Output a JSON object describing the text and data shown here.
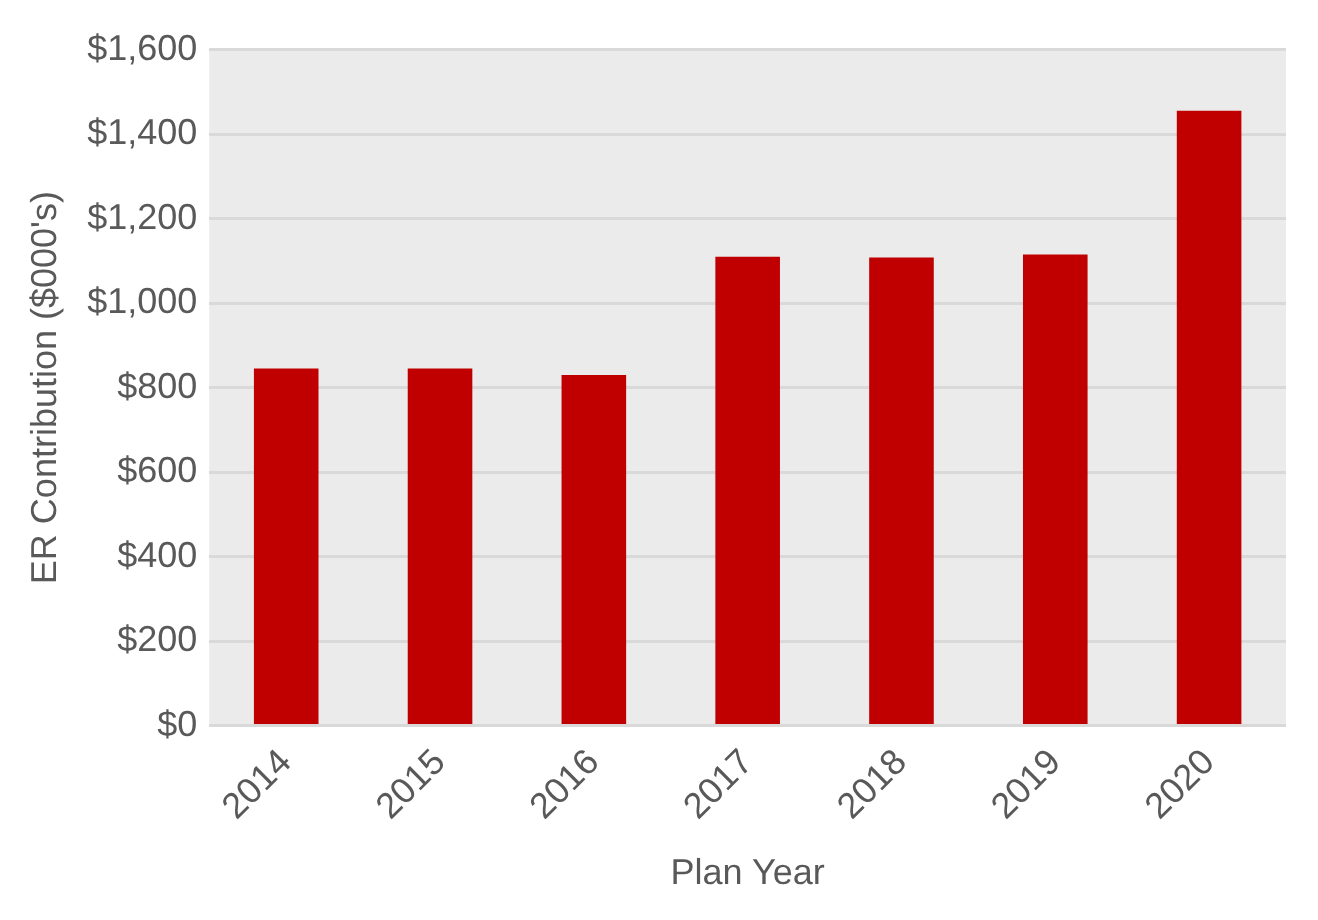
{
  "chart_data": {
    "type": "bar",
    "xlabel": "Plan Year",
    "ylabel": "ER Contribution ($000's)",
    "categories": [
      "2014",
      "2015",
      "2016",
      "2017",
      "2018",
      "2019",
      "2020"
    ],
    "values": [
      845,
      845,
      830,
      1110,
      1108,
      1115,
      1455
    ],
    "color": "#c00000",
    "ylim": [
      0,
      1600
    ],
    "yticks": [
      {
        "value": 0,
        "label": "$0"
      },
      {
        "value": 200,
        "label": "$200"
      },
      {
        "value": 400,
        "label": "$400"
      },
      {
        "value": 600,
        "label": "$600"
      },
      {
        "value": 800,
        "label": "$800"
      },
      {
        "value": 1000,
        "label": "$1,000"
      },
      {
        "value": 1200,
        "label": "$1,200"
      },
      {
        "value": 1400,
        "label": "$1,400"
      },
      {
        "value": 1600,
        "label": "$1,600"
      }
    ],
    "grid": "y",
    "legend": false
  }
}
